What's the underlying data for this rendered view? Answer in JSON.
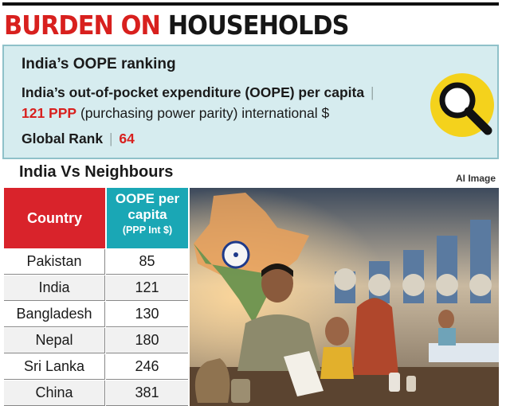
{
  "headline": {
    "part1": "BURDEN ON",
    "part2": "HOUSEHOLDS"
  },
  "ranking": {
    "title": "India’s OOPE ranking",
    "description": "India’s out-of-pocket expenditure (OOPE) per capita",
    "value": "121 PPP",
    "value_unit": "(purchasing power parity) international $",
    "global_rank_label": "Global Rank",
    "global_rank_value": "64",
    "separator": "|"
  },
  "section": {
    "title": "India Vs Neighbours",
    "image_credit": "AI Image"
  },
  "table": {
    "header_country": "Country",
    "header_value_line1": "OOPE per",
    "header_value_line2": "capita",
    "header_value_unit": "(PPP Int $)",
    "rows": [
      {
        "country": "Pakistan",
        "value": "85"
      },
      {
        "country": "India",
        "value": "121"
      },
      {
        "country": "Bangladesh",
        "value": "130"
      },
      {
        "country": "Nepal",
        "value": "180"
      },
      {
        "country": "Sri Lanka",
        "value": "246"
      },
      {
        "country": "China",
        "value": "381"
      }
    ]
  },
  "colors": {
    "accent_red": "#d8201e",
    "accent_teal": "#1aa7b5",
    "box_bg": "#d6ecef",
    "magnifier_yellow": "#f4d21c"
  },
  "icons": {
    "magnifier": "magnifying-glass-icon"
  }
}
